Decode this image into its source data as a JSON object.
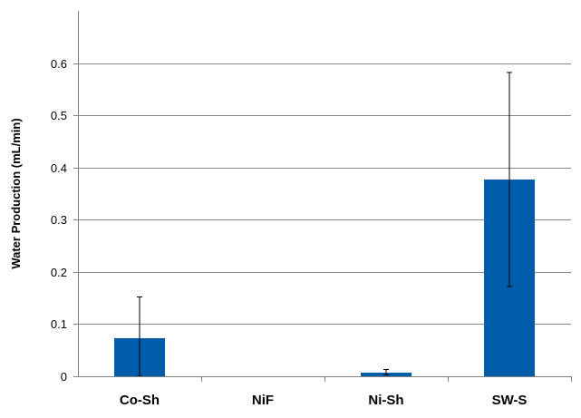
{
  "chart_data": {
    "type": "bar",
    "title": "",
    "xlabel": "",
    "ylabel": "Water Production (mL/min)",
    "categories": [
      "Co-Sh",
      "NiF",
      "Ni-Sh",
      "SW-S"
    ],
    "values": [
      0.073,
      0.0,
      0.007,
      0.377
    ],
    "error_low": [
      0.0,
      0.0,
      0.003,
      0.172
    ],
    "error_high": [
      0.152,
      0.0,
      0.013,
      0.582
    ],
    "ylim": [
      0,
      0.7
    ],
    "yticks": [
      0,
      0.1,
      0.2,
      0.3,
      0.4,
      0.5,
      0.6
    ],
    "ytick_labels": [
      "0",
      "0.1",
      "0.2",
      "0.3",
      "0.4",
      "0.5",
      "0.6"
    ],
    "grid": true,
    "legend": "none",
    "bar_color": "#005DAA"
  }
}
